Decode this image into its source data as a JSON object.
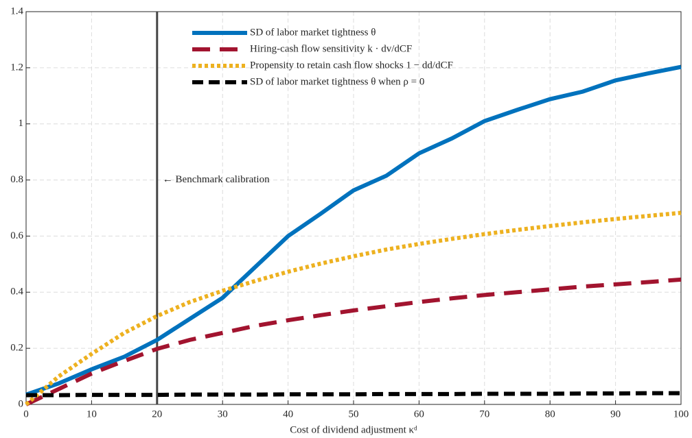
{
  "chart_data": {
    "type": "line",
    "x_label": "Cost of dividend adjustment κᵈ",
    "annotation": "← Benchmark calibration",
    "benchmark_x": 20,
    "x": [
      0,
      5,
      10,
      15,
      20,
      25,
      30,
      35,
      40,
      45,
      50,
      55,
      60,
      65,
      70,
      75,
      80,
      85,
      90,
      95,
      100
    ],
    "series": [
      {
        "name": "SD of labor market tightness θ",
        "color": "#0072bd",
        "style": "solid",
        "values": [
          0.035,
          0.075,
          0.125,
          0.17,
          0.23,
          0.305,
          0.38,
          0.49,
          0.6,
          0.68,
          0.763,
          0.815,
          0.895,
          0.948,
          1.01,
          1.05,
          1.088,
          1.115,
          1.155,
          1.18,
          1.203
        ]
      },
      {
        "name": "Hiring-cash flow sensitivity k · dv/dCF",
        "color": "#a2142f",
        "style": "dashed",
        "values": [
          0,
          0.055,
          0.11,
          0.155,
          0.198,
          0.23,
          0.255,
          0.28,
          0.3,
          0.318,
          0.335,
          0.35,
          0.365,
          0.378,
          0.39,
          0.4,
          0.41,
          0.42,
          0.428,
          0.436,
          0.445
        ]
      },
      {
        "name": "Propensity to retain cash flow shocks 1 − dd/dCF",
        "color": "#edb120",
        "style": "dotted",
        "values": [
          0,
          0.1,
          0.18,
          0.255,
          0.315,
          0.365,
          0.405,
          0.44,
          0.473,
          0.502,
          0.528,
          0.552,
          0.572,
          0.59,
          0.607,
          0.622,
          0.636,
          0.649,
          0.661,
          0.672,
          0.683
        ]
      },
      {
        "name": "SD of labor market tightness θ when ρ = 0",
        "color": "#000000",
        "style": "dashdot",
        "values": [
          0.033,
          0.033,
          0.034,
          0.034,
          0.034,
          0.035,
          0.035,
          0.035,
          0.036,
          0.036,
          0.036,
          0.037,
          0.037,
          0.037,
          0.038,
          0.038,
          0.038,
          0.039,
          0.039,
          0.04,
          0.04
        ]
      }
    ],
    "xlim": [
      0,
      100
    ],
    "xticks": [
      0,
      10,
      20,
      30,
      40,
      50,
      60,
      70,
      80,
      90,
      100
    ],
    "ylim": [
      0,
      1.4
    ],
    "yticks": [
      0,
      0.2,
      0.4,
      0.6,
      0.8,
      1,
      1.2,
      1.4
    ],
    "grid": true
  }
}
